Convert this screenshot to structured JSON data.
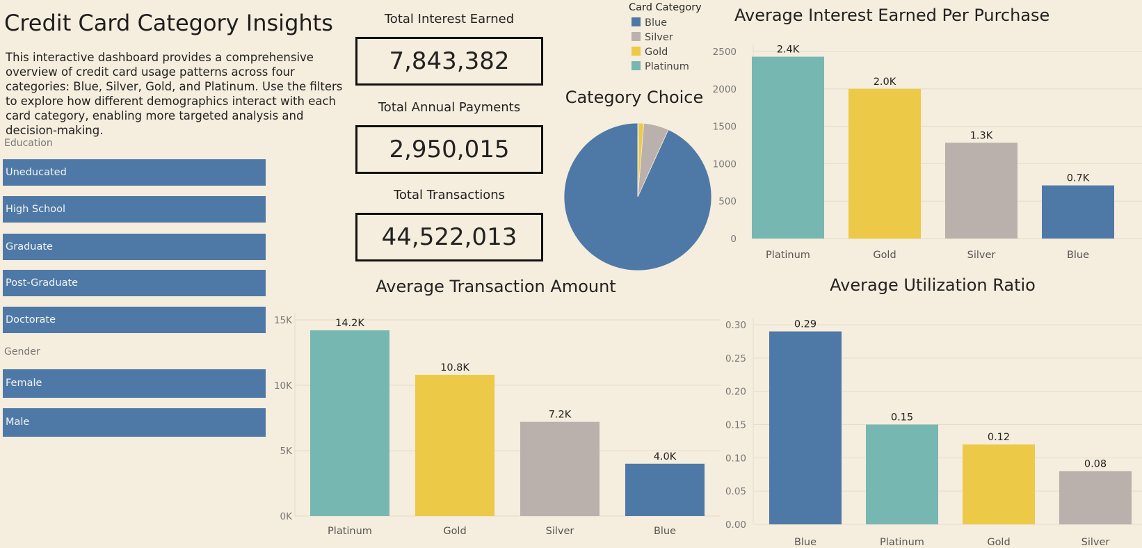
{
  "title": "Credit Card Category Insights",
  "description": "This interactive dashboard provides a comprehensive overview of credit card usage patterns across four categories: Blue, Silver, Gold, and Platinum. Use the filters to explore how different demographics interact with each card category, enabling more targeted analysis and decision-making.",
  "filters": {
    "education_label": "Education",
    "education": [
      "Uneducated",
      "High School",
      "Graduate",
      "Post-Graduate",
      "Doctorate"
    ],
    "gender_label": "Gender",
    "gender": [
      "Female",
      "Male"
    ]
  },
  "kpis": [
    {
      "label": "Total Interest Earned",
      "value": "7,843,382"
    },
    {
      "label": "Total Annual Payments",
      "value": "2,950,015"
    },
    {
      "label": "Total Transactions",
      "value": "44,522,013"
    }
  ],
  "legend": {
    "title": "Card Category",
    "items": [
      {
        "name": "Blue",
        "color": "#4e79a7"
      },
      {
        "name": "Silver",
        "color": "#bab0ac"
      },
      {
        "name": "Gold",
        "color": "#edc948"
      },
      {
        "name": "Platinum",
        "color": "#76b7b2"
      }
    ]
  },
  "chart_data": [
    {
      "type": "pie",
      "title": "Category Choice",
      "categories": [
        "Blue",
        "Silver",
        "Gold",
        "Platinum"
      ],
      "values": [
        93.2,
        5.5,
        1.1,
        0.2
      ]
    },
    {
      "type": "bar",
      "title": "Average Interest Earned Per Purchase",
      "categories": [
        "Platinum",
        "Gold",
        "Silver",
        "Blue"
      ],
      "values": [
        2430,
        2000,
        1280,
        710
      ],
      "data_labels": [
        "2.4K",
        "2.0K",
        "1.3K",
        "0.7K"
      ],
      "ticks": [
        "0",
        "500",
        "1000",
        "1500",
        "2000",
        "2500"
      ],
      "tick_values": [
        0,
        500,
        1000,
        1500,
        2000,
        2500
      ],
      "ylim": [
        0,
        2500
      ],
      "colors": [
        "#76b7b2",
        "#edc948",
        "#bab0ac",
        "#4e79a7"
      ],
      "grid": true
    },
    {
      "type": "bar",
      "title": "Average Transaction Amount",
      "categories": [
        "Platinum",
        "Gold",
        "Silver",
        "Blue"
      ],
      "values": [
        14200,
        10800,
        7200,
        4000
      ],
      "data_labels": [
        "14.2K",
        "10.8K",
        "7.2K",
        "4.0K"
      ],
      "ticks": [
        "0K",
        "5K",
        "10K",
        "15K"
      ],
      "tick_values": [
        0,
        5000,
        10000,
        15000
      ],
      "ylim": [
        0,
        15000
      ],
      "colors": [
        "#76b7b2",
        "#edc948",
        "#bab0ac",
        "#4e79a7"
      ],
      "grid": true
    },
    {
      "type": "bar",
      "title": "Average Utilization Ratio",
      "categories": [
        "Blue",
        "Platinum",
        "Gold",
        "Silver"
      ],
      "values": [
        0.29,
        0.15,
        0.12,
        0.08
      ],
      "data_labels": [
        "0.29",
        "0.15",
        "0.12",
        "0.08"
      ],
      "ticks": [
        "0.00",
        "0.05",
        "0.10",
        "0.15",
        "0.20",
        "0.25",
        "0.30"
      ],
      "tick_values": [
        0,
        0.05,
        0.1,
        0.15,
        0.2,
        0.25,
        0.3
      ],
      "ylim": [
        0,
        0.3
      ],
      "colors": [
        "#4e79a7",
        "#76b7b2",
        "#edc948",
        "#bab0ac"
      ],
      "grid": true
    }
  ]
}
